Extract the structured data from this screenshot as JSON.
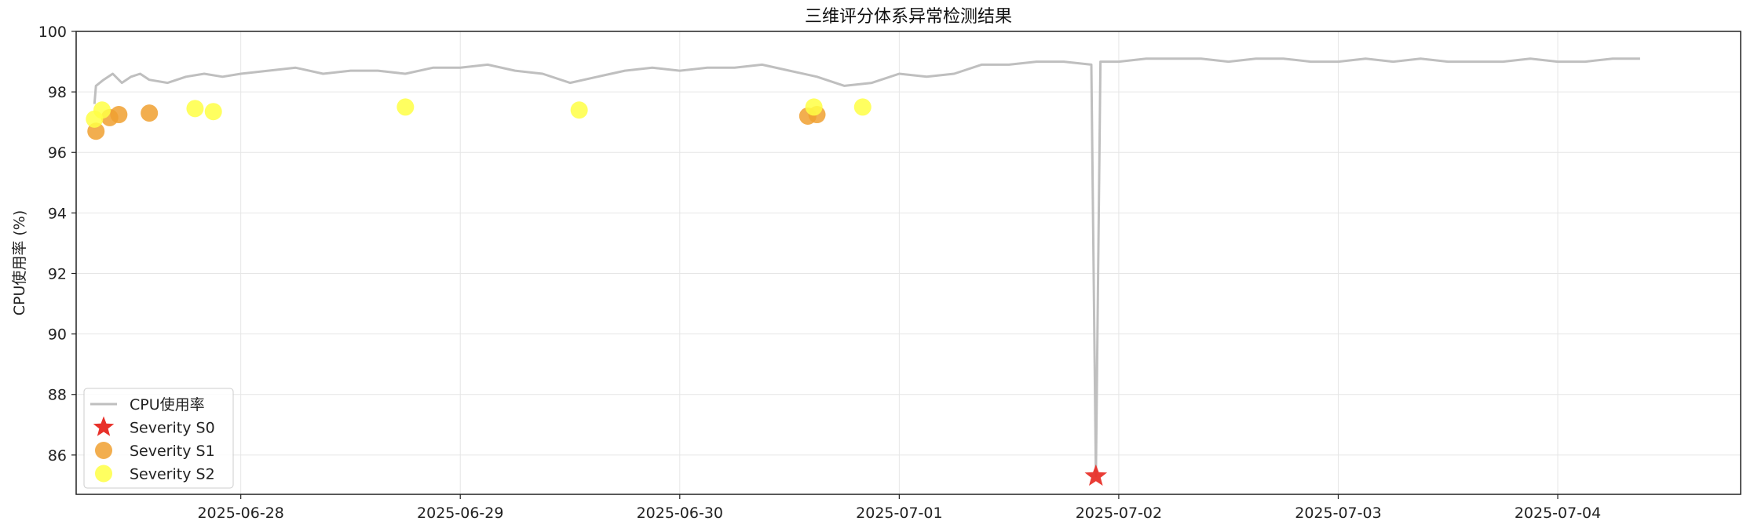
{
  "chart_data": {
    "type": "line",
    "title": "三维评分体系异常检测结果",
    "xlabel": "",
    "ylabel": "CPU使用率 (%)",
    "xlim": [
      "2025-06-27 06:00",
      "2025-07-04 20:00"
    ],
    "ylim": [
      84.7,
      100
    ],
    "y_ticks": [
      86,
      88,
      90,
      92,
      94,
      96,
      98,
      100
    ],
    "x_ticks": [
      "2025-06-28",
      "2025-06-29",
      "2025-06-30",
      "2025-07-01",
      "2025-07-02",
      "2025-07-03",
      "2025-07-04"
    ],
    "grid": true,
    "legend_position": "bottom-left",
    "series": [
      {
        "name": "CPU使用率",
        "kind": "line",
        "color": "#bfbfbf",
        "x": [
          "2025-06-27 08:00",
          "2025-06-27 08:10",
          "2025-06-27 09:00",
          "2025-06-27 10:00",
          "2025-06-27 11:00",
          "2025-06-27 12:00",
          "2025-06-27 13:00",
          "2025-06-27 14:00",
          "2025-06-27 16:00",
          "2025-06-27 18:00",
          "2025-06-27 20:00",
          "2025-06-27 22:00",
          "2025-06-28 00:00",
          "2025-06-28 03:00",
          "2025-06-28 06:00",
          "2025-06-28 09:00",
          "2025-06-28 12:00",
          "2025-06-28 15:00",
          "2025-06-28 18:00",
          "2025-06-28 21:00",
          "2025-06-29 00:00",
          "2025-06-29 03:00",
          "2025-06-29 06:00",
          "2025-06-29 09:00",
          "2025-06-29 12:00",
          "2025-06-29 15:00",
          "2025-06-29 18:00",
          "2025-06-29 21:00",
          "2025-06-30 00:00",
          "2025-06-30 03:00",
          "2025-06-30 06:00",
          "2025-06-30 09:00",
          "2025-06-30 12:00",
          "2025-06-30 15:00",
          "2025-06-30 18:00",
          "2025-06-30 21:00",
          "2025-07-01 00:00",
          "2025-07-01 03:00",
          "2025-07-01 06:00",
          "2025-07-01 09:00",
          "2025-07-01 12:00",
          "2025-07-01 15:00",
          "2025-07-01 18:00",
          "2025-07-01 21:00",
          "2025-07-01 21:30",
          "2025-07-01 22:00",
          "2025-07-02 00:00",
          "2025-07-02 03:00",
          "2025-07-02 06:00",
          "2025-07-02 09:00",
          "2025-07-02 12:00",
          "2025-07-02 15:00",
          "2025-07-02 18:00",
          "2025-07-02 21:00",
          "2025-07-03 00:00",
          "2025-07-03 03:00",
          "2025-07-03 06:00",
          "2025-07-03 09:00",
          "2025-07-03 12:00",
          "2025-07-03 15:00",
          "2025-07-03 18:00",
          "2025-07-03 21:00",
          "2025-07-04 00:00",
          "2025-07-04 03:00",
          "2025-07-04 06:00",
          "2025-07-04 09:00"
        ],
        "values": [
          97.6,
          98.2,
          98.4,
          98.6,
          98.3,
          98.5,
          98.6,
          98.4,
          98.3,
          98.5,
          98.6,
          98.5,
          98.6,
          98.7,
          98.8,
          98.6,
          98.7,
          98.7,
          98.6,
          98.8,
          98.8,
          98.9,
          98.7,
          98.6,
          98.3,
          98.5,
          98.7,
          98.8,
          98.7,
          98.8,
          98.8,
          98.9,
          98.7,
          98.5,
          98.2,
          98.3,
          98.6,
          98.5,
          98.6,
          98.9,
          98.9,
          99.0,
          99.0,
          98.9,
          85.3,
          99.0,
          99.0,
          99.1,
          99.1,
          99.1,
          99.0,
          99.1,
          99.1,
          99.0,
          99.0,
          99.1,
          99.0,
          99.1,
          99.0,
          99.0,
          99.0,
          99.1,
          99.0,
          99.0,
          99.1,
          99.1
        ]
      },
      {
        "name": "Severity S0",
        "kind": "scatter",
        "marker": "star",
        "color": "#e8312a",
        "x": [
          "2025-07-01 21:30"
        ],
        "values": [
          85.3
        ]
      },
      {
        "name": "Severity S1",
        "kind": "scatter",
        "marker": "circle",
        "color": "#f0a030",
        "x": [
          "2025-06-27 08:10",
          "2025-06-27 09:40",
          "2025-06-27 10:40",
          "2025-06-27 14:00",
          "2025-06-30 14:00",
          "2025-06-30 15:00"
        ],
        "values": [
          96.7,
          97.15,
          97.25,
          97.3,
          97.2,
          97.25
        ]
      },
      {
        "name": "Severity S2",
        "kind": "scatter",
        "marker": "circle",
        "color": "#ffff44",
        "x": [
          "2025-06-27 08:00",
          "2025-06-27 08:50",
          "2025-06-27 19:00",
          "2025-06-27 21:00",
          "2025-06-28 18:00",
          "2025-06-29 13:00",
          "2025-06-30 14:40",
          "2025-06-30 20:00"
        ],
        "values": [
          97.1,
          97.4,
          97.45,
          97.35,
          97.5,
          97.4,
          97.5,
          97.5
        ]
      }
    ]
  }
}
